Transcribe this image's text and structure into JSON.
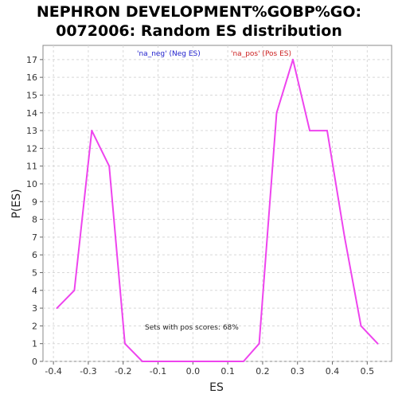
{
  "chart_data": {
    "type": "line",
    "title_line1": "NEPHRON DEVELOPMENT%GOBP%GO:",
    "title_line2": "0072006: Random ES distribution",
    "xlabel": "ES",
    "ylabel": "P(ES)",
    "xlim": [
      -0.43,
      0.57
    ],
    "ylim": [
      0,
      17.8
    ],
    "xticks": [
      -0.4,
      -0.3,
      -0.2,
      -0.1,
      0.0,
      0.1,
      0.2,
      0.3,
      0.4,
      0.5
    ],
    "xtick_labels": [
      "-0.4",
      "-0.3",
      "-0.2",
      "-0.1",
      "0.0",
      "0.1",
      "0.2",
      "0.3",
      "0.4",
      "0.5"
    ],
    "yticks": [
      0,
      1,
      2,
      3,
      4,
      5,
      6,
      7,
      8,
      9,
      10,
      11,
      12,
      13,
      14,
      15,
      16,
      17
    ],
    "ytick_labels": [
      "0",
      "1",
      "2",
      "3",
      "4",
      "5",
      "6",
      "7",
      "8",
      "9",
      "10",
      "11",
      "12",
      "13",
      "14",
      "15",
      "16",
      "17"
    ],
    "grid": true,
    "legend": [
      {
        "label": "'na_neg' (Neg ES)",
        "color": "#2020cc"
      },
      {
        "label": "'na_pos' (Pos ES)",
        "color": "#cc2020"
      }
    ],
    "annotation": "Sets with pos scores: 68%",
    "series": [
      {
        "color": "#ee44ee",
        "x": [
          -0.39,
          -0.34,
          -0.29,
          -0.24,
          -0.195,
          -0.145,
          -0.1,
          0.0,
          0.1,
          0.145,
          0.19,
          0.24,
          0.287,
          0.335,
          0.385,
          0.435,
          0.482,
          0.53
        ],
        "y": [
          3,
          4,
          13,
          11,
          1,
          0,
          0,
          0,
          0,
          0,
          1,
          14,
          17,
          13,
          13,
          7,
          2,
          1
        ]
      }
    ]
  }
}
